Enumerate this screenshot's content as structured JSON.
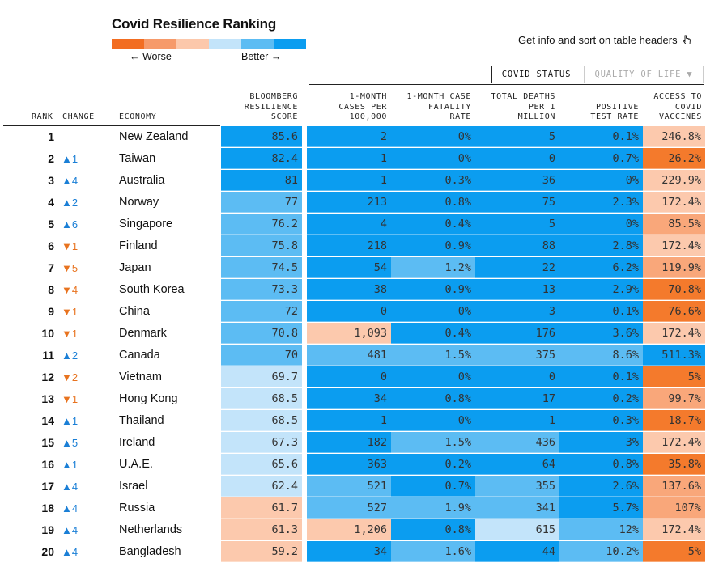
{
  "legend": {
    "title": "Covid Resilience Ranking",
    "worse_label": "← Worse",
    "better_label": "Better →",
    "colors": [
      "#f26d21",
      "#f69a6a",
      "#fcc8ab",
      "#c3e4fa",
      "#5cbcf3",
      "#0b9df0"
    ]
  },
  "info_text": "Get info and sort on table headers",
  "info_icon": "pointer-icon",
  "tabs": [
    {
      "label": "COVID STATUS",
      "active": true
    },
    {
      "label": "QUALITY OF LIFE ▼",
      "active": false
    }
  ],
  "headers": {
    "rank": "RANK",
    "change": "CHANGE",
    "economy": "ECONOMY",
    "score": [
      "BLOOMBERG",
      "RESILIENCE",
      "SCORE"
    ],
    "cases": [
      "1-MONTH",
      "CASES PER",
      "100,000"
    ],
    "cfr": [
      "1-MONTH CASE",
      "FATALITY",
      "RATE"
    ],
    "deaths": [
      "TOTAL DEATHS",
      "PER 1",
      "MILLION"
    ],
    "positive": [
      "POSITIVE",
      "TEST RATE"
    ],
    "vaccines": [
      "ACCESS TO",
      "COVID",
      "VACCINES"
    ]
  },
  "palette": {
    "o": "#f47a2c",
    "p": "#f9a77a",
    "c": "#fcc9ad",
    "l": "#c3e4fa",
    "m": "#5cbcf3",
    "b": "#0b9df0"
  },
  "rows": [
    {
      "rank": "1",
      "change": "–",
      "dir": "none",
      "economy": "New Zealand",
      "score": "85.6",
      "cases": "2",
      "cfr": "0%",
      "deaths": "5",
      "positive": "0.1%",
      "vaccines": "246.8%",
      "colors": [
        "b",
        "b",
        "b",
        "b",
        "b",
        "c"
      ]
    },
    {
      "rank": "2",
      "change": "▲1",
      "dir": "up",
      "economy": "Taiwan",
      "score": "82.4",
      "cases": "1",
      "cfr": "0%",
      "deaths": "0",
      "positive": "0.7%",
      "vaccines": "26.2%",
      "colors": [
        "b",
        "b",
        "b",
        "b",
        "b",
        "o"
      ]
    },
    {
      "rank": "3",
      "change": "▲4",
      "dir": "up",
      "economy": "Australia",
      "score": "81",
      "cases": "1",
      "cfr": "0.3%",
      "deaths": "36",
      "positive": "0%",
      "vaccines": "229.9%",
      "colors": [
        "b",
        "b",
        "b",
        "b",
        "b",
        "c"
      ]
    },
    {
      "rank": "4",
      "change": "▲2",
      "dir": "up",
      "economy": "Norway",
      "score": "77",
      "cases": "213",
      "cfr": "0.8%",
      "deaths": "75",
      "positive": "2.3%",
      "vaccines": "172.4%",
      "colors": [
        "m",
        "b",
        "b",
        "b",
        "b",
        "c"
      ]
    },
    {
      "rank": "5",
      "change": "▲6",
      "dir": "up",
      "economy": "Singapore",
      "score": "76.2",
      "cases": "4",
      "cfr": "0.4%",
      "deaths": "5",
      "positive": "0%",
      "vaccines": "85.5%",
      "colors": [
        "m",
        "b",
        "b",
        "b",
        "b",
        "p"
      ]
    },
    {
      "rank": "6",
      "change": "▼1",
      "dir": "down",
      "economy": "Finland",
      "score": "75.8",
      "cases": "218",
      "cfr": "0.9%",
      "deaths": "88",
      "positive": "2.8%",
      "vaccines": "172.4%",
      "colors": [
        "m",
        "b",
        "b",
        "b",
        "b",
        "c"
      ]
    },
    {
      "rank": "7",
      "change": "▼5",
      "dir": "down",
      "economy": "Japan",
      "score": "74.5",
      "cases": "54",
      "cfr": "1.2%",
      "deaths": "22",
      "positive": "6.2%",
      "vaccines": "119.9%",
      "colors": [
        "m",
        "b",
        "m",
        "b",
        "b",
        "p"
      ]
    },
    {
      "rank": "8",
      "change": "▼4",
      "dir": "down",
      "economy": "South Korea",
      "score": "73.3",
      "cases": "38",
      "cfr": "0.9%",
      "deaths": "13",
      "positive": "2.9%",
      "vaccines": "70.8%",
      "colors": [
        "m",
        "b",
        "b",
        "b",
        "b",
        "o"
      ]
    },
    {
      "rank": "9",
      "change": "▼1",
      "dir": "down",
      "economy": "China",
      "score": "72",
      "cases": "0",
      "cfr": "0%",
      "deaths": "3",
      "positive": "0.1%",
      "vaccines": "76.6%",
      "colors": [
        "m",
        "b",
        "b",
        "b",
        "b",
        "o"
      ]
    },
    {
      "rank": "10",
      "change": "▼1",
      "dir": "down",
      "economy": "Denmark",
      "score": "70.8",
      "cases": "1,093",
      "cfr": "0.4%",
      "deaths": "176",
      "positive": "3.6%",
      "vaccines": "172.4%",
      "colors": [
        "m",
        "c",
        "b",
        "b",
        "b",
        "c"
      ]
    },
    {
      "rank": "11",
      "change": "▲2",
      "dir": "up",
      "economy": "Canada",
      "score": "70",
      "cases": "481",
      "cfr": "1.5%",
      "deaths": "375",
      "positive": "8.6%",
      "vaccines": "511.3%",
      "colors": [
        "m",
        "m",
        "m",
        "m",
        "m",
        "b"
      ]
    },
    {
      "rank": "12",
      "change": "▼2",
      "dir": "down",
      "economy": "Vietnam",
      "score": "69.7",
      "cases": "0",
      "cfr": "0%",
      "deaths": "0",
      "positive": "0.1%",
      "vaccines": "5%",
      "colors": [
        "l",
        "b",
        "b",
        "b",
        "b",
        "o"
      ]
    },
    {
      "rank": "13",
      "change": "▼1",
      "dir": "down",
      "economy": "Hong Kong",
      "score": "68.5",
      "cases": "34",
      "cfr": "0.8%",
      "deaths": "17",
      "positive": "0.2%",
      "vaccines": "99.7%",
      "colors": [
        "l",
        "b",
        "b",
        "b",
        "b",
        "p"
      ]
    },
    {
      "rank": "14",
      "change": "▲1",
      "dir": "up",
      "economy": "Thailand",
      "score": "68.5",
      "cases": "1",
      "cfr": "0%",
      "deaths": "1",
      "positive": "0.3%",
      "vaccines": "18.7%",
      "colors": [
        "l",
        "b",
        "b",
        "b",
        "b",
        "o"
      ]
    },
    {
      "rank": "15",
      "change": "▲5",
      "dir": "up",
      "economy": "Ireland",
      "score": "67.3",
      "cases": "182",
      "cfr": "1.5%",
      "deaths": "436",
      "positive": "3%",
      "vaccines": "172.4%",
      "colors": [
        "l",
        "b",
        "m",
        "m",
        "b",
        "c"
      ]
    },
    {
      "rank": "16",
      "change": "▲1",
      "dir": "up",
      "economy": "U.A.E.",
      "score": "65.6",
      "cases": "363",
      "cfr": "0.2%",
      "deaths": "64",
      "positive": "0.8%",
      "vaccines": "35.8%",
      "colors": [
        "l",
        "b",
        "b",
        "b",
        "b",
        "o"
      ]
    },
    {
      "rank": "17",
      "change": "▲4",
      "dir": "up",
      "economy": "Israel",
      "score": "62.4",
      "cases": "521",
      "cfr": "0.7%",
      "deaths": "355",
      "positive": "2.6%",
      "vaccines": "137.6%",
      "colors": [
        "l",
        "m",
        "b",
        "m",
        "b",
        "p"
      ]
    },
    {
      "rank": "18",
      "change": "▲4",
      "dir": "up",
      "economy": "Russia",
      "score": "61.7",
      "cases": "527",
      "cfr": "1.9%",
      "deaths": "341",
      "positive": "5.7%",
      "vaccines": "107%",
      "colors": [
        "c",
        "m",
        "m",
        "m",
        "b",
        "p"
      ]
    },
    {
      "rank": "19",
      "change": "▲4",
      "dir": "up",
      "economy": "Netherlands",
      "score": "61.3",
      "cases": "1,206",
      "cfr": "0.8%",
      "deaths": "615",
      "positive": "12%",
      "vaccines": "172.4%",
      "colors": [
        "c",
        "c",
        "b",
        "l",
        "m",
        "c"
      ]
    },
    {
      "rank": "20",
      "change": "▲4",
      "dir": "up",
      "economy": "Bangladesh",
      "score": "59.2",
      "cases": "34",
      "cfr": "1.6%",
      "deaths": "44",
      "positive": "10.2%",
      "vaccines": "5%",
      "colors": [
        "c",
        "b",
        "m",
        "b",
        "m",
        "o"
      ]
    }
  ]
}
